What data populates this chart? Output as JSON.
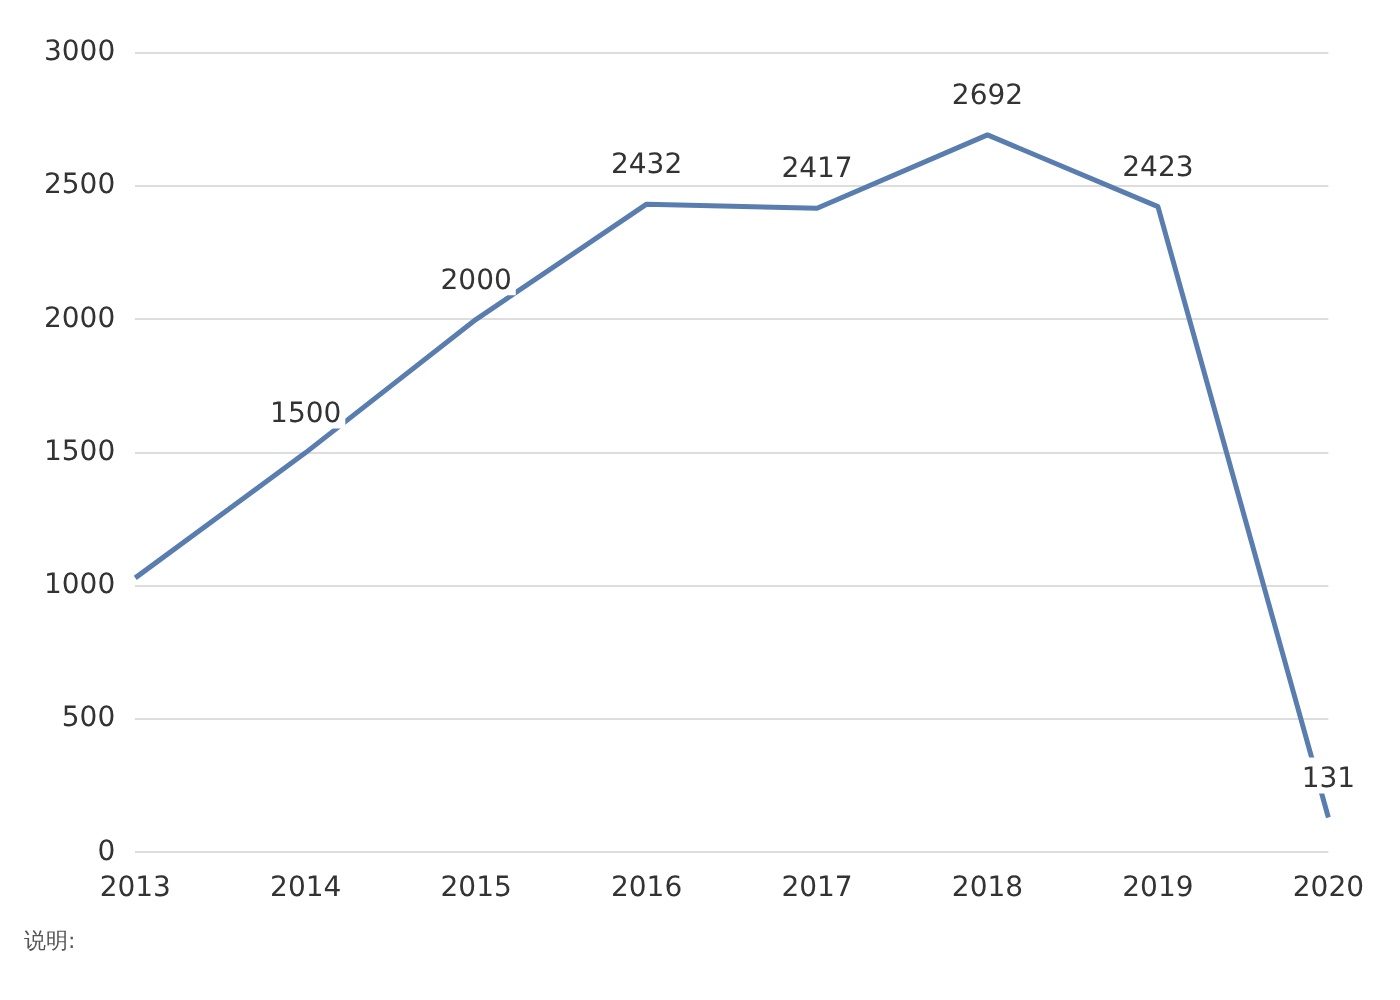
{
  "chart_data": {
    "type": "line",
    "categories": [
      "2013",
      "2014",
      "2015",
      "2016",
      "2017",
      "2018",
      "2019",
      "2020"
    ],
    "series": [
      {
        "color": "#5a7db0",
        "values": [
          1030,
          1500,
          2000,
          2432,
          2417,
          2692,
          2423,
          131
        ],
        "value_labels": [
          null,
          "1500",
          "2000",
          "2432",
          "2417",
          "2692",
          "2423",
          "131"
        ]
      }
    ],
    "ylim": [
      0,
      3000
    ],
    "yticks": [
      0,
      500,
      1000,
      1500,
      2000,
      2500,
      3000
    ],
    "grid": "y",
    "legend": false,
    "marker": "none",
    "line_style": "solid",
    "annotations": [
      "说明:"
    ]
  }
}
